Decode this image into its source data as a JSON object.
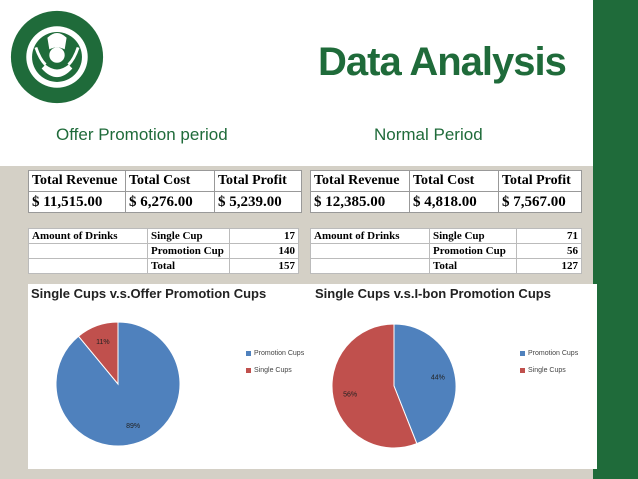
{
  "slide": {
    "title": "Data Analysis",
    "offer_heading": "Offer Promotion period",
    "normal_heading": "Normal Period"
  },
  "colors": {
    "brand_green": "#1f6b3a",
    "promotion_blue": "#4f81bd",
    "single_red": "#c0504d"
  },
  "offer": {
    "fin_headers": [
      "Total Revenue",
      "Total Cost",
      "Total Profit"
    ],
    "fin_values": [
      "$ 11,515.00",
      "$ 6,276.00",
      "$ 5,239.00"
    ],
    "amount_label": "Amount of Drinks",
    "rows": [
      {
        "label": "Single Cup",
        "value": "17"
      },
      {
        "label": "Promotion Cup",
        "value": "140"
      },
      {
        "label": "Total",
        "value": "157"
      }
    ]
  },
  "normal": {
    "fin_headers": [
      "Total Revenue",
      "Total Cost",
      "Total Profit"
    ],
    "fin_values": [
      "$ 12,385.00",
      "$ 4,818.00",
      "$ 7,567.00"
    ],
    "amount_label": "Amount of Drinks",
    "rows": [
      {
        "label": "Single Cup",
        "value": "71"
      },
      {
        "label": "Promotion Cup",
        "value": "56"
      },
      {
        "label": "Total",
        "value": "127"
      }
    ]
  },
  "chart_data": [
    {
      "type": "pie",
      "title": "Single Cups v.s.Offer Promotion Cups",
      "categories": [
        "Promotion Cups",
        "Single Cups"
      ],
      "values": [
        89,
        11
      ],
      "labels": [
        "89%",
        "11%"
      ],
      "legend": "right"
    },
    {
      "type": "pie",
      "title": "Single Cups v.s.I-bon Promotion Cups",
      "categories": [
        "Promotion Cups",
        "Single Cups"
      ],
      "values": [
        44,
        56
      ],
      "labels": [
        "44%",
        "56%"
      ],
      "legend": "right"
    }
  ]
}
